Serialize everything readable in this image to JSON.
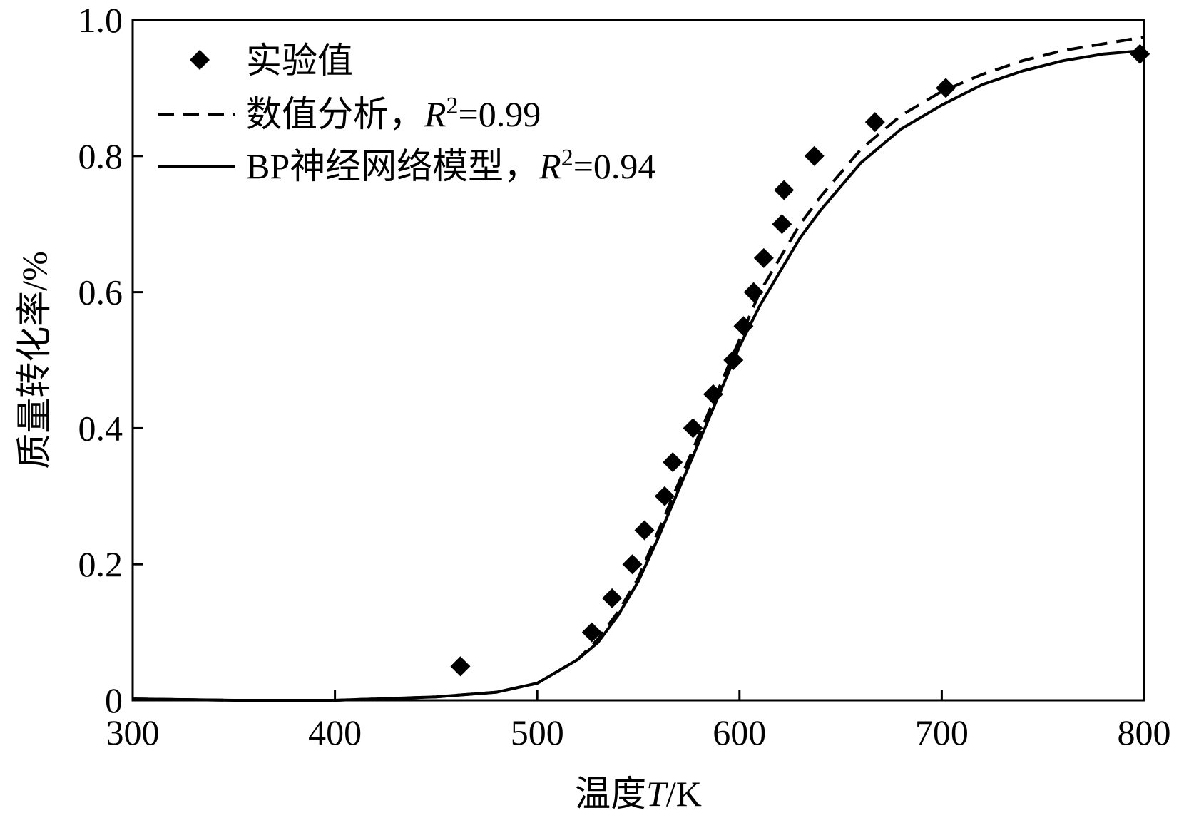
{
  "chart_data": {
    "type": "scatter",
    "title": "",
    "xlabel": {
      "prefix": "温度",
      "var": "T",
      "suffix": "/K"
    },
    "ylabel": "质量转化率/%",
    "xlim": [
      300,
      800
    ],
    "ylim": [
      0,
      1.0
    ],
    "x_ticks": [
      300,
      400,
      500,
      600,
      700,
      800
    ],
    "x_tick_labels": [
      "300",
      "400",
      "500",
      "600",
      "700",
      "800"
    ],
    "y_ticks": [
      0,
      0.2,
      0.4,
      0.6,
      0.8,
      1.0
    ],
    "y_tick_labels": [
      "0",
      "0.2",
      "0.4",
      "0.6",
      "0.8",
      "1.0"
    ],
    "grid": false,
    "legend_position": "top-left",
    "series": [
      {
        "name": "实验值",
        "style": "markers",
        "marker": "diamond",
        "color": "#000000",
        "x": [
          462,
          527,
          537,
          547,
          553,
          563,
          567,
          577,
          587,
          597,
          602,
          607,
          612,
          621,
          622,
          637,
          667,
          702,
          798
        ],
        "y": [
          0.05,
          0.1,
          0.15,
          0.2,
          0.25,
          0.3,
          0.35,
          0.4,
          0.45,
          0.5,
          0.55,
          0.6,
          0.65,
          0.7,
          0.75,
          0.8,
          0.85,
          0.9,
          0.95
        ]
      },
      {
        "name": "数值分析，",
        "r2_label": "R",
        "r2_sup": "2",
        "r2_value": "=0.99",
        "style": "dashed",
        "color": "#000000",
        "x": [
          300,
          350,
          400,
          450,
          480,
          500,
          520,
          530,
          540,
          550,
          560,
          570,
          580,
          590,
          600,
          610,
          620,
          630,
          640,
          660,
          680,
          700,
          720,
          740,
          760,
          780,
          800
        ],
        "y": [
          0.002,
          0.0,
          0.0,
          0.005,
          0.012,
          0.025,
          0.06,
          0.09,
          0.13,
          0.18,
          0.25,
          0.32,
          0.39,
          0.46,
          0.53,
          0.6,
          0.65,
          0.7,
          0.74,
          0.81,
          0.86,
          0.895,
          0.92,
          0.94,
          0.955,
          0.965,
          0.975
        ]
      },
      {
        "name": "BP神经网络模型，",
        "r2_label": "R",
        "r2_sup": "2",
        "r2_value": "=0.94",
        "style": "solid",
        "color": "#000000",
        "x": [
          300,
          350,
          400,
          450,
          480,
          500,
          520,
          530,
          540,
          550,
          560,
          570,
          580,
          590,
          600,
          610,
          620,
          630,
          640,
          660,
          680,
          700,
          720,
          740,
          760,
          780,
          800
        ],
        "y": [
          0.002,
          0.0,
          0.0,
          0.005,
          0.012,
          0.025,
          0.06,
          0.085,
          0.125,
          0.175,
          0.24,
          0.31,
          0.38,
          0.45,
          0.52,
          0.58,
          0.63,
          0.68,
          0.72,
          0.79,
          0.84,
          0.875,
          0.905,
          0.925,
          0.94,
          0.95,
          0.955
        ]
      }
    ]
  }
}
